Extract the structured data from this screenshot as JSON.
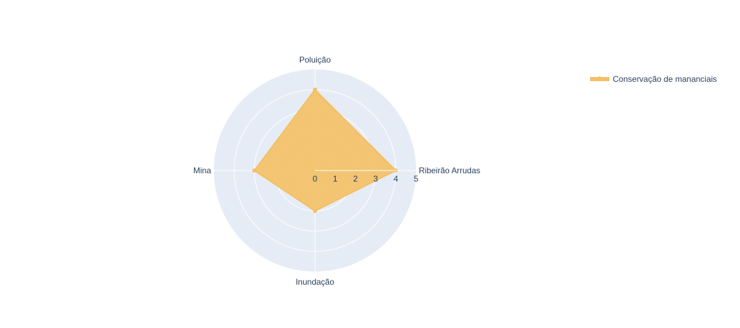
{
  "chart_data": {
    "type": "radar",
    "categories": [
      "Ribeirão Arrudas",
      "Poluição",
      "Mina",
      "Inundação"
    ],
    "series": [
      {
        "name": "Conservação de mananciais",
        "values": [
          4,
          4,
          3,
          2
        ],
        "color": "#f4c064"
      }
    ],
    "radial_range": [
      0,
      5
    ],
    "radial_ticks": [
      "0",
      "1",
      "2",
      "3",
      "4",
      "5"
    ],
    "grid": true,
    "legend_position": "top-right",
    "colors": {
      "background": "#e5ecf6",
      "grid": "#ffffff",
      "text": "#2a3f5f",
      "fill": "#f4c064"
    }
  }
}
